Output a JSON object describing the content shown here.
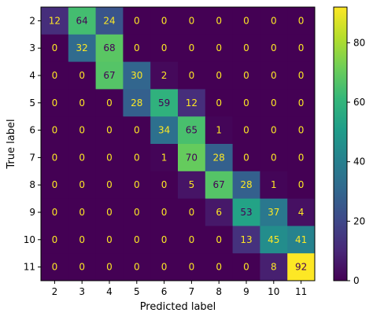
{
  "chart_data": {
    "type": "heatmap",
    "title": "",
    "xlabel": "Predicted label",
    "ylabel": "True label",
    "x_categories": [
      "2",
      "3",
      "4",
      "5",
      "6",
      "7",
      "8",
      "9",
      "10",
      "11"
    ],
    "y_categories": [
      "2",
      "3",
      "4",
      "5",
      "6",
      "7",
      "8",
      "9",
      "10",
      "11"
    ],
    "values": [
      [
        12,
        64,
        24,
        0,
        0,
        0,
        0,
        0,
        0,
        0
      ],
      [
        0,
        32,
        68,
        0,
        0,
        0,
        0,
        0,
        0,
        0
      ],
      [
        0,
        0,
        67,
        30,
        2,
        0,
        0,
        0,
        0,
        0
      ],
      [
        0,
        0,
        0,
        28,
        59,
        12,
        0,
        0,
        0,
        0
      ],
      [
        0,
        0,
        0,
        0,
        34,
        65,
        1,
        0,
        0,
        0
      ],
      [
        0,
        0,
        0,
        0,
        1,
        70,
        28,
        0,
        0,
        0
      ],
      [
        0,
        0,
        0,
        0,
        0,
        5,
        67,
        28,
        1,
        0
      ],
      [
        0,
        0,
        0,
        0,
        0,
        0,
        6,
        53,
        37,
        4
      ],
      [
        0,
        0,
        0,
        0,
        0,
        0,
        0,
        13,
        45,
        41
      ],
      [
        0,
        0,
        0,
        0,
        0,
        0,
        0,
        0,
        8,
        92
      ]
    ],
    "colormap": "viridis",
    "color_range": [
      0,
      92
    ],
    "colorbar_ticks": [
      "0",
      "20",
      "40",
      "60",
      "80"
    ],
    "colorbar_tick_values": [
      0,
      20,
      40,
      60,
      80
    ],
    "grid": false,
    "legend": "colorbar-right"
  }
}
